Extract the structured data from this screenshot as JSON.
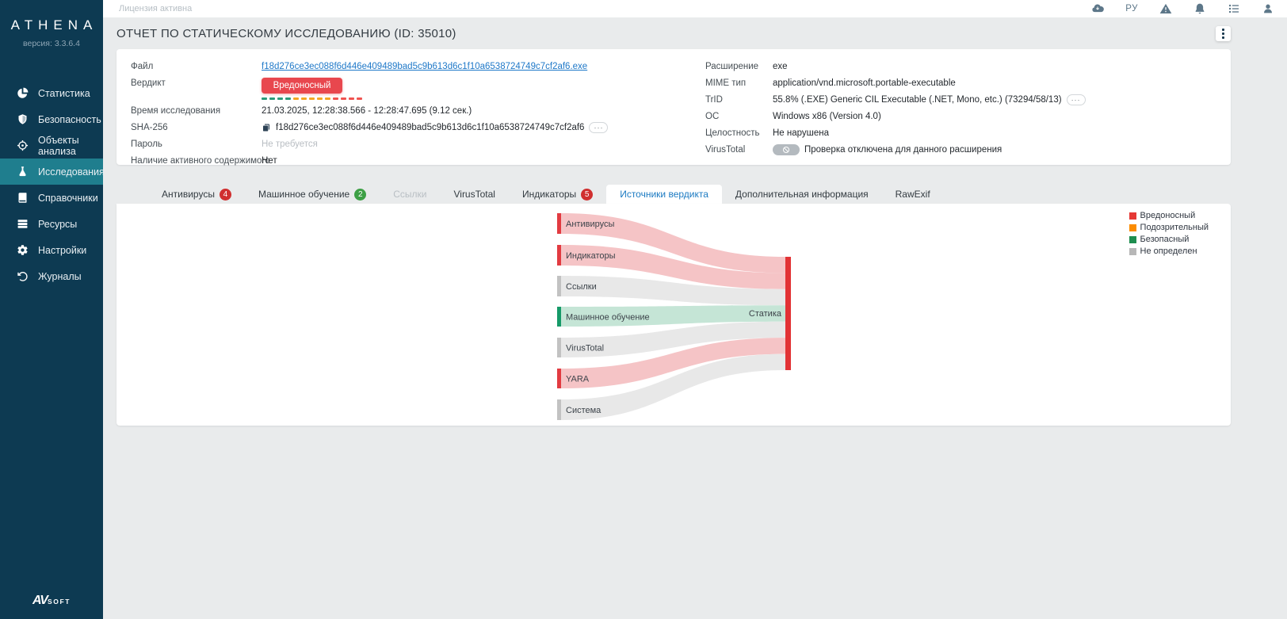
{
  "topbar": {
    "license": "Лицензия активна",
    "icons": [
      {
        "name": "cloud-download-icon"
      },
      {
        "name": "language-label",
        "text": "РУ"
      },
      {
        "name": "warning-icon"
      },
      {
        "name": "bell-icon"
      },
      {
        "name": "tasks-icon"
      },
      {
        "name": "user-icon"
      }
    ]
  },
  "sidebar": {
    "logo": "ATHENA",
    "version": "версия: 3.3.6.4",
    "items": [
      {
        "id": "statistics",
        "label": "Статистика",
        "icon": "pie-chart-icon",
        "active": false
      },
      {
        "id": "security",
        "label": "Безопасность",
        "icon": "shield-icon",
        "active": false
      },
      {
        "id": "objects",
        "label": "Объекты анализа",
        "icon": "target-icon",
        "active": false
      },
      {
        "id": "research",
        "label": "Исследования",
        "icon": "flask-icon",
        "active": true
      },
      {
        "id": "references",
        "label": "Справочники",
        "icon": "book-icon",
        "active": false
      },
      {
        "id": "resources",
        "label": "Ресурсы",
        "icon": "servers-icon",
        "active": false
      },
      {
        "id": "settings",
        "label": "Настройки",
        "icon": "gear-icon",
        "active": false
      },
      {
        "id": "journals",
        "label": "Журналы",
        "icon": "history-icon",
        "active": false
      }
    ],
    "footer": {
      "brand_av": "AV",
      "brand_soft": "SOFT"
    }
  },
  "header": {
    "title": "ОТЧЕТ ПО СТАТИЧЕСКОМУ ИССЛЕДОВАНИЮ (ID: 35010)"
  },
  "file_info": {
    "more_label": "···",
    "verdict_dashes": [
      {
        "color": "#2b9b7a",
        "count": 4
      },
      {
        "color": "#f5a623",
        "count": 5
      },
      {
        "color": "#ef5350",
        "count": 4
      }
    ],
    "left_fields": [
      {
        "label": "Файл",
        "type": "link",
        "value": "f18d276ce3ec088f6d446e409489bad5c9b613d6c1f10a6538724749c7cf2af6.exe"
      },
      {
        "label": "Вердикт",
        "type": "verdict",
        "value": "Вредоносный"
      },
      {
        "label": "Время исследования",
        "type": "text",
        "value": "21.03.2025, 12:28:38.566 - 12:28:47.695 (9.12 сек.)"
      },
      {
        "label": "SHA-256",
        "type": "hash",
        "value": "f18d276ce3ec088f6d446e409489bad5c9b613d6c1f10a6538724749c7cf2af6"
      },
      {
        "label": "Пароль",
        "type": "muted",
        "value": "Не требуется"
      },
      {
        "label": "Наличие активного содержимого",
        "type": "text",
        "value": "Нет"
      }
    ],
    "right_fields": [
      {
        "label": "Расширение",
        "type": "text",
        "value": "exe"
      },
      {
        "label": "MIME тип",
        "type": "text",
        "value": "application/vnd.microsoft.portable-executable"
      },
      {
        "label": "TrID",
        "type": "trid",
        "value": "55.8% (.EXE) Generic CIL Executable (.NET, Mono, etc.) (73294/58/13)"
      },
      {
        "label": "ОС",
        "type": "text",
        "value": "Windows x86 (Version 4.0)"
      },
      {
        "label": "Целостность",
        "type": "text",
        "value": "Не нарушена"
      },
      {
        "label": "VirusTotal",
        "type": "vt",
        "value": "Проверка отключена для данного расширения"
      }
    ]
  },
  "tabs": [
    {
      "label": "Антивирусы",
      "badge": "4",
      "badge_color": "#d02f2f"
    },
    {
      "label": "Машинное обучение",
      "badge": "2",
      "badge_color": "#3da045"
    },
    {
      "label": "Ссылки",
      "disabled": true
    },
    {
      "label": "VirusTotal"
    },
    {
      "label": "Индикаторы",
      "badge": "5",
      "badge_color": "#d02f2f"
    },
    {
      "label": "Источники вердикта",
      "active": true
    },
    {
      "label": "Дополнительная информация"
    },
    {
      "label": "RawExif"
    }
  ],
  "chart_data": {
    "type": "sankey",
    "target": "Статика",
    "target_color": "#e23235",
    "nodes": [
      {
        "label": "Антивирусы",
        "verdict": "malicious",
        "bar": "#e23b41",
        "flow": "#f5c4c6"
      },
      {
        "label": "Индикаторы",
        "verdict": "malicious",
        "bar": "#e23b41",
        "flow": "#f5c4c6"
      },
      {
        "label": "Ссылки",
        "verdict": "undefined",
        "bar": "#c2c2c2",
        "flow": "#e8e8e8"
      },
      {
        "label": "Машинное обучение",
        "verdict": "safe",
        "bar": "#169a68",
        "flow": "#c5e5d6"
      },
      {
        "label": "VirusTotal",
        "verdict": "undefined",
        "bar": "#c2c2c2",
        "flow": "#e8e8e8"
      },
      {
        "label": "YARA",
        "verdict": "malicious",
        "bar": "#e23b41",
        "flow": "#f5c4c6"
      },
      {
        "label": "Система",
        "verdict": "undefined",
        "bar": "#c2c2c2",
        "flow": "#e8e8e8"
      }
    ],
    "legend": [
      {
        "label": "Вредоносный",
        "color": "#e53935"
      },
      {
        "label": "Подозрительный",
        "color": "#fb8c00"
      },
      {
        "label": "Безопасный",
        "color": "#1e8e4f"
      },
      {
        "label": "Не определен",
        "color": "#b7b7b7"
      }
    ]
  }
}
